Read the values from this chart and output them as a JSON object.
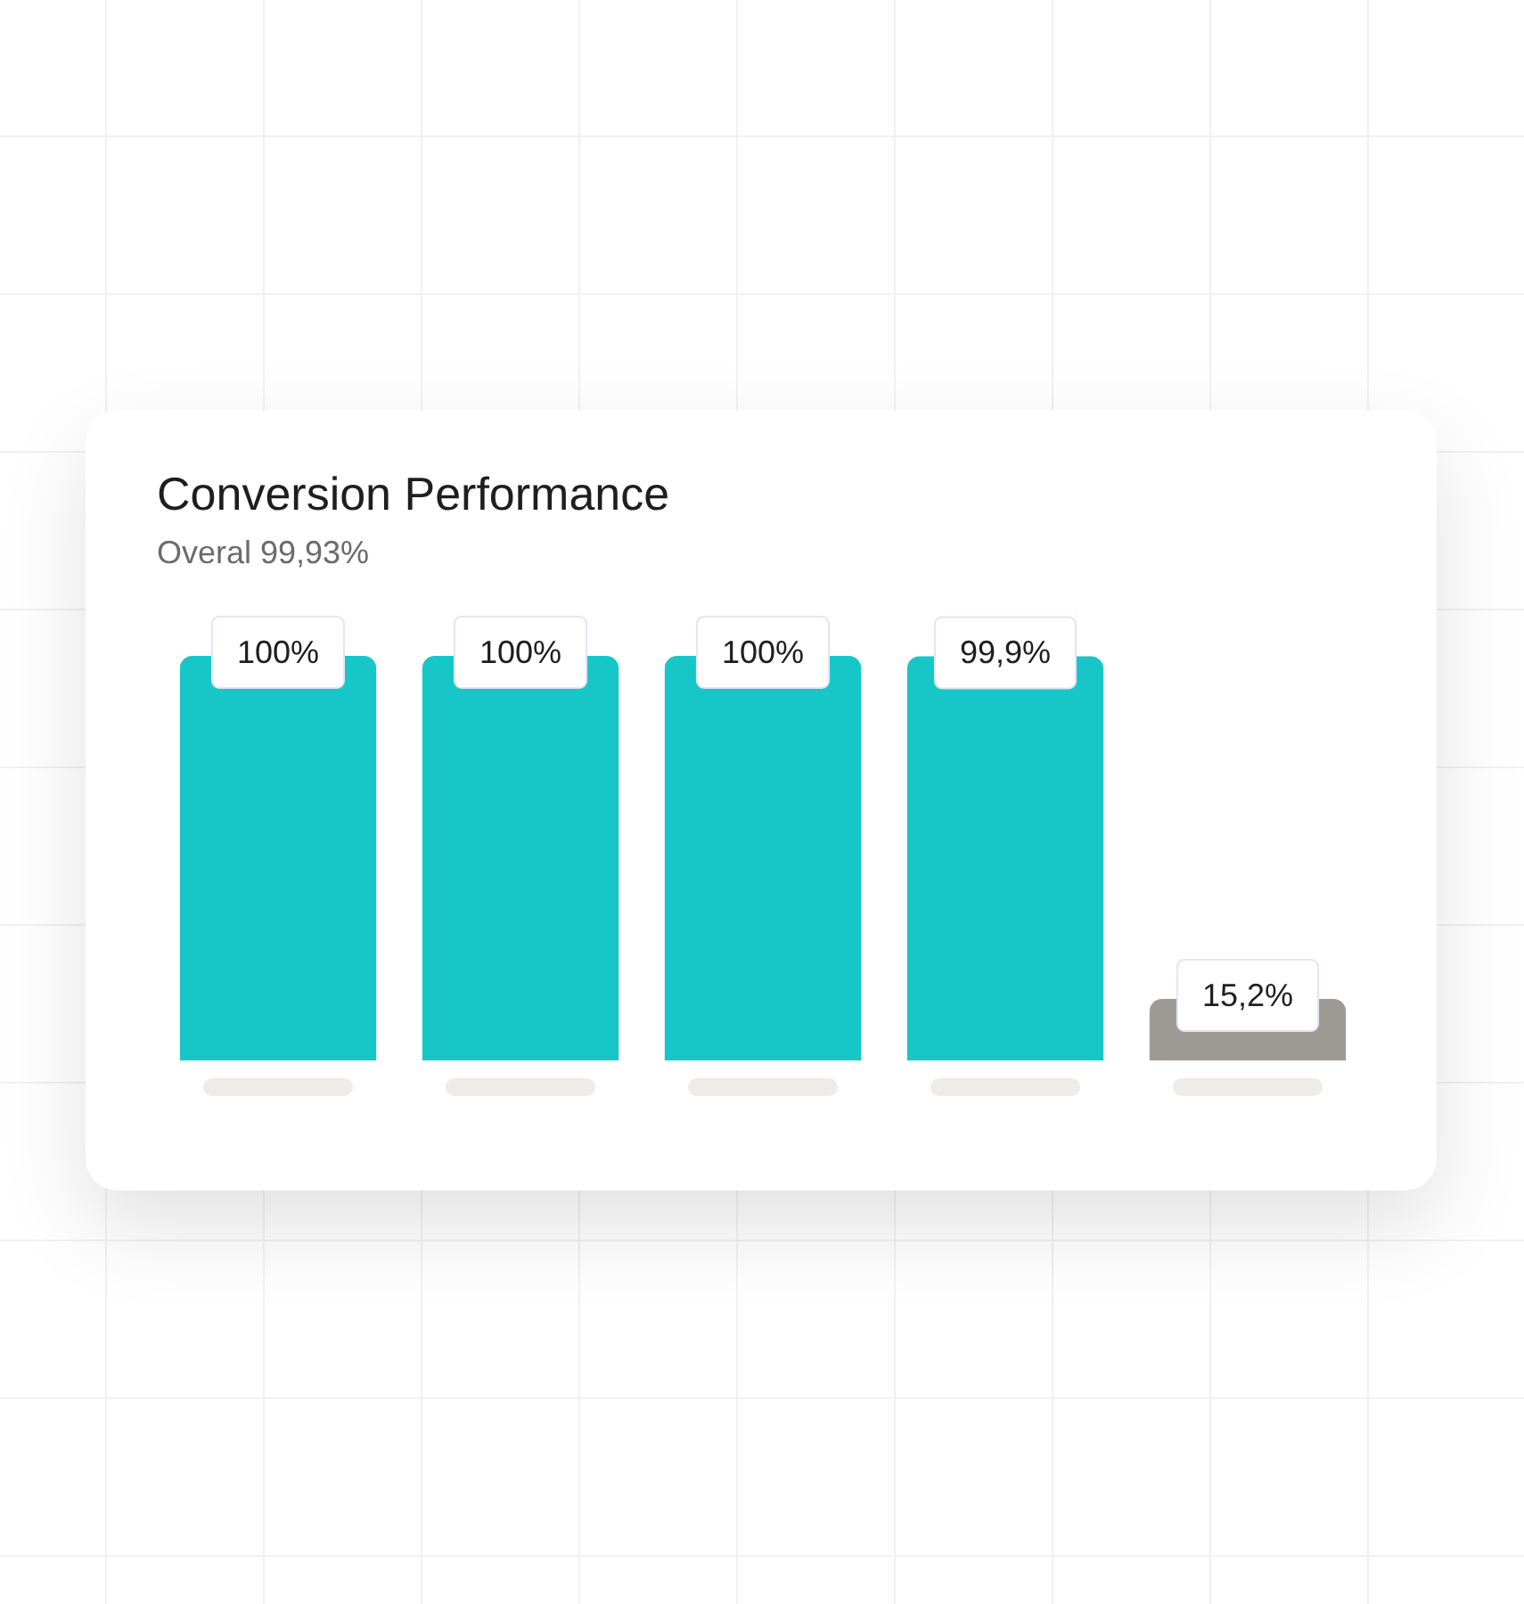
{
  "chart_data": {
    "type": "bar",
    "title": "Conversion Performance",
    "subtitle": "Overal 99,93%",
    "categories": [
      null,
      null,
      null,
      null,
      null
    ],
    "values": [
      100,
      100,
      100,
      99.9,
      15.2
    ],
    "colors": [
      "#17c7c7",
      "#17c7c7",
      "#17c7c7",
      "#17c7c7",
      "#9e9b97"
    ],
    "value_labels": [
      "100%",
      "100%",
      "100%",
      "99,9%",
      "15,2%"
    ]
  }
}
